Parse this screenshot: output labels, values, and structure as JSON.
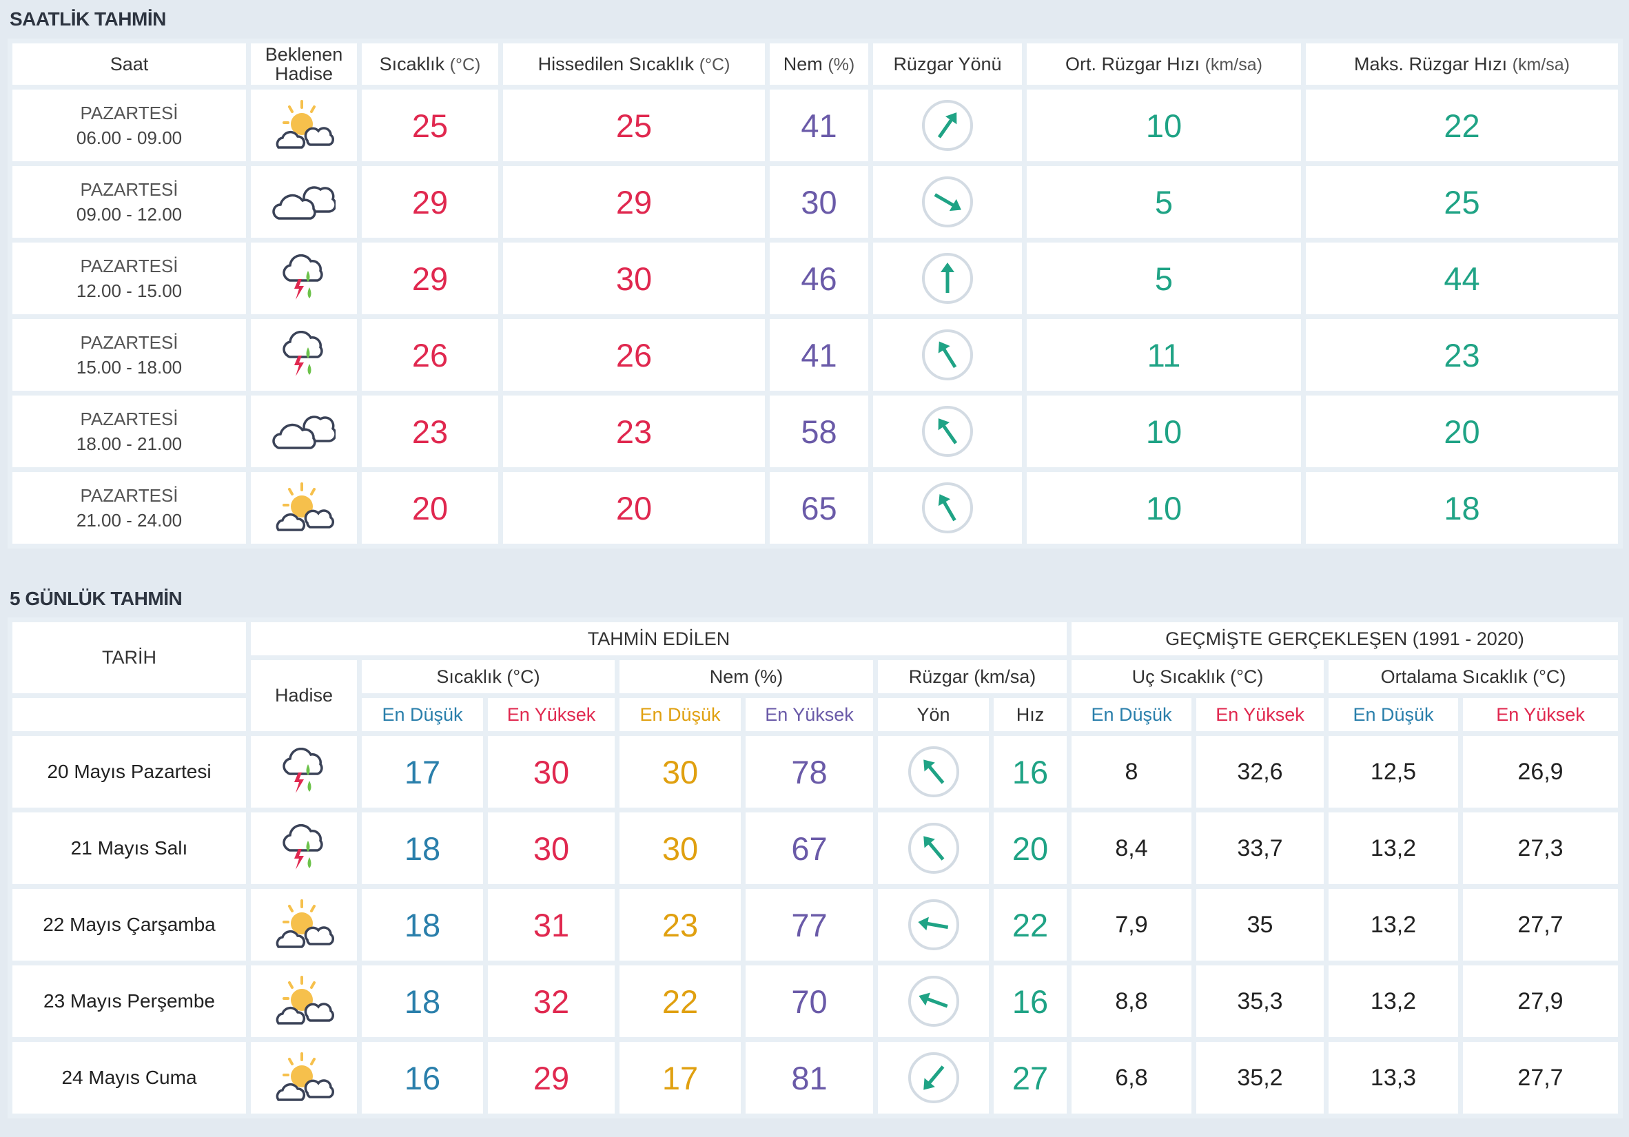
{
  "colors": {
    "red": "#e0284f",
    "purple": "#6a5aa8",
    "green": "#1fa385",
    "blue": "#2a7fab",
    "orange": "#e0a010",
    "background": "#e3eaf1"
  },
  "hourly": {
    "title": "SAATLİK TAHMİN",
    "headers": {
      "saat": "Saat",
      "hadise_1": "Beklenen",
      "hadise_2": "Hadise",
      "sicaklik": "Sıcaklık",
      "sicaklik_unit": "(°C)",
      "hissedilen": "Hissedilen Sıcaklık",
      "hissedilen_unit": "(°C)",
      "nem": "Nem",
      "nem_unit": "(%)",
      "yon": "Rüzgar Yönü",
      "ort": "Ort. Rüzgar Hızı",
      "ort_unit": "(km/sa)",
      "maks": "Maks. Rüzgar Hızı",
      "maks_unit": "(km/sa)"
    },
    "rows": [
      {
        "day": "PAZARTESİ",
        "time": "06.00 - 09.00",
        "icon": "partly-sunny-icon",
        "temp": "25",
        "feels": "25",
        "humidity": "41",
        "wind_dir_deg": 215,
        "avg_wind": "10",
        "max_wind": "22"
      },
      {
        "day": "PAZARTESİ",
        "time": "09.00 - 12.00",
        "icon": "cloudy-icon",
        "temp": "29",
        "feels": "29",
        "humidity": "30",
        "wind_dir_deg": 300,
        "avg_wind": "5",
        "max_wind": "25"
      },
      {
        "day": "PAZARTESİ",
        "time": "12.00 - 15.00",
        "icon": "thunder-rain-icon",
        "temp": "29",
        "feels": "30",
        "humidity": "46",
        "wind_dir_deg": 180,
        "avg_wind": "5",
        "max_wind": "44"
      },
      {
        "day": "PAZARTESİ",
        "time": "15.00 - 18.00",
        "icon": "thunder-rain-icon",
        "temp": "26",
        "feels": "26",
        "humidity": "41",
        "wind_dir_deg": 148,
        "avg_wind": "11",
        "max_wind": "23"
      },
      {
        "day": "PAZARTESİ",
        "time": "18.00 - 21.00",
        "icon": "cloudy-icon",
        "temp": "23",
        "feels": "23",
        "humidity": "58",
        "wind_dir_deg": 145,
        "avg_wind": "10",
        "max_wind": "20"
      },
      {
        "day": "PAZARTESİ",
        "time": "21.00 - 24.00",
        "icon": "partly-sunny-icon",
        "temp": "20",
        "feels": "20",
        "humidity": "65",
        "wind_dir_deg": 150,
        "avg_wind": "10",
        "max_wind": "18"
      }
    ]
  },
  "daily": {
    "title": "5 GÜNLÜK TAHMİN",
    "headers": {
      "tarih": "TARİH",
      "tahmin": "TAHMİN EDİLEN",
      "gecmis": "GEÇMİŞTE GERÇEKLEŞEN (1991 - 2020)",
      "hadise": "Hadise",
      "sicaklik": "Sıcaklık (°C)",
      "nem": "Nem (%)",
      "ruzgar": "Rüzgar (km/sa)",
      "uc": "Uç Sıcaklık (°C)",
      "ortalama": "Ortalama Sıcaklık (°C)",
      "en_dusuk": "En Düşük",
      "en_yuksek": "En Yüksek",
      "yon": "Yön",
      "hiz": "Hız"
    },
    "rows": [
      {
        "date": "20 Mayıs Pazartesi",
        "icon": "thunder-rain-icon",
        "temp_min": "17",
        "temp_max": "30",
        "hum_min": "30",
        "hum_max": "78",
        "wind_dir_deg": 140,
        "wind_speed": "16",
        "ext_min": "8",
        "ext_max": "32,6",
        "avg_min": "12,5",
        "avg_max": "26,9"
      },
      {
        "date": "21 Mayıs Salı",
        "icon": "thunder-rain-icon",
        "temp_min": "18",
        "temp_max": "30",
        "hum_min": "30",
        "hum_max": "67",
        "wind_dir_deg": 140,
        "wind_speed": "20",
        "ext_min": "8,4",
        "ext_max": "33,7",
        "avg_min": "13,2",
        "avg_max": "27,3"
      },
      {
        "date": "22 Mayıs Çarşamba",
        "icon": "partly-sunny-icon",
        "temp_min": "18",
        "temp_max": "31",
        "hum_min": "23",
        "hum_max": "77",
        "wind_dir_deg": 100,
        "wind_speed": "22",
        "ext_min": "7,9",
        "ext_max": "35",
        "avg_min": "13,2",
        "avg_max": "27,7"
      },
      {
        "date": "23 Mayıs Perşembe",
        "icon": "partly-sunny-icon",
        "temp_min": "18",
        "temp_max": "32",
        "hum_min": "22",
        "hum_max": "70",
        "wind_dir_deg": 110,
        "wind_speed": "16",
        "ext_min": "8,8",
        "ext_max": "35,3",
        "avg_min": "13,2",
        "avg_max": "27,9"
      },
      {
        "date": "24 Mayıs Cuma",
        "icon": "partly-sunny-icon",
        "temp_min": "16",
        "temp_max": "29",
        "hum_min": "17",
        "hum_max": "81",
        "wind_dir_deg": 40,
        "wind_speed": "27",
        "ext_min": "6,8",
        "ext_max": "35,2",
        "avg_min": "13,3",
        "avg_max": "27,7"
      }
    ]
  }
}
